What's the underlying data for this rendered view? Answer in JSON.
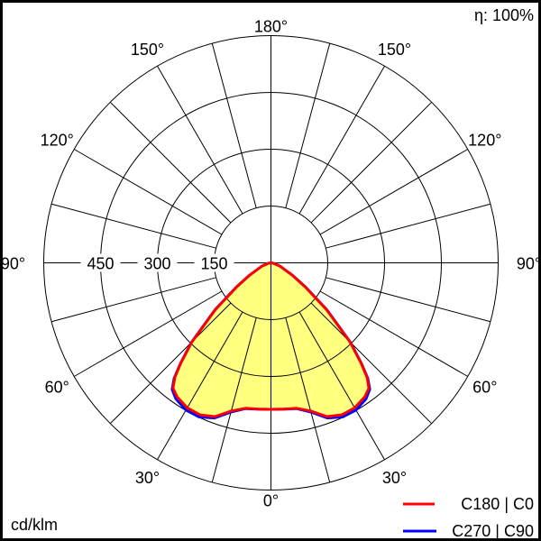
{
  "chart_data": {
    "type": "polar",
    "title": "",
    "efficiency_label": "η: 100%",
    "unit_label": "cd/klm",
    "radial_ticks": [
      150,
      300,
      450
    ],
    "radial_max": 600,
    "angle_labels": [
      "180°",
      "150°",
      "120°",
      "90°",
      "60°",
      "30°",
      "0°"
    ],
    "angle_ticks": [
      180,
      150,
      120,
      90,
      60,
      30,
      0
    ],
    "grid": true,
    "legend_position": "bottom-right",
    "fill_color": "#ffff80",
    "gamma": [
      0,
      5,
      10,
      15,
      20,
      25,
      30,
      35,
      38,
      40,
      42,
      45,
      50,
      55,
      60,
      70,
      80,
      90
    ],
    "series": [
      {
        "name": "C180 | C0",
        "color": "#ff0000",
        "values": [
          387,
          388,
          390,
          405,
          432,
          443,
          442,
          432,
          420,
          395,
          355,
          295,
          190,
          110,
          65,
          25,
          8,
          0
        ]
      },
      {
        "name": "C270 | C90",
        "color": "#0000ff",
        "values": [
          387,
          388,
          391,
          408,
          436,
          449,
          449,
          438,
          424,
          398,
          357,
          297,
          192,
          112,
          66,
          25,
          8,
          0
        ]
      }
    ]
  }
}
